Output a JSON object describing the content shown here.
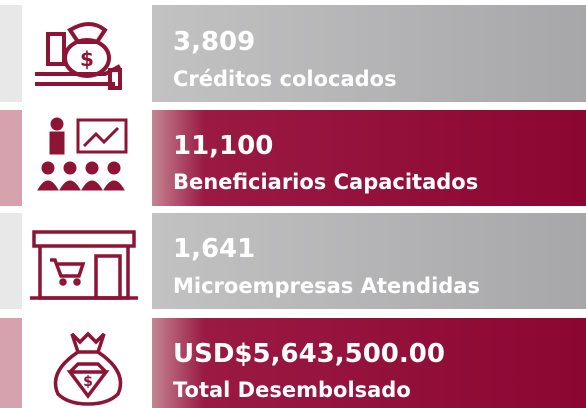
{
  "items": [
    {
      "value": "3,809",
      "label": "Créditos colocados"
    },
    {
      "value": "11,100",
      "label": "Beneficiarios Capacitados"
    },
    {
      "value": "1,641",
      "label": "Microempresas Atendidas"
    },
    {
      "value": "USD$5,643,500.00",
      "label": "Total Desembolsado"
    }
  ]
}
